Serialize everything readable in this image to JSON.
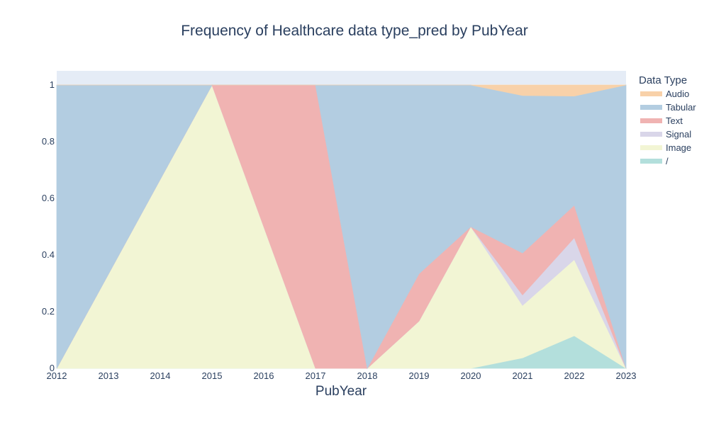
{
  "chart_data": {
    "type": "area",
    "stacked": true,
    "title": "Frequency of Healthcare data type_pred by PubYear",
    "xlabel": "PubYear",
    "ylabel": "",
    "x": [
      2012,
      2013,
      2014,
      2015,
      2016,
      2017,
      2018,
      2019,
      2020,
      2021,
      2022,
      2023
    ],
    "xlim": [
      2012,
      2023
    ],
    "ylim": [
      0,
      1.05
    ],
    "yticks": [
      0,
      0.2,
      0.4,
      0.6,
      0.8,
      1
    ],
    "ytick_labels": [
      "0",
      "0.2",
      "0.4",
      "0.6",
      "0.8",
      "1"
    ],
    "xtick_labels": [
      "2012",
      "2013",
      "2014",
      "2015",
      "2016",
      "2017",
      "2018",
      "2019",
      "2020",
      "2021",
      "2022",
      "2023"
    ],
    "grid": true,
    "legend": {
      "title": "Data Type",
      "position": "right"
    },
    "series": [
      {
        "name": "/",
        "color": "#b3dfdc",
        "values": [
          0,
          0,
          0,
          0,
          0,
          0,
          0,
          0,
          0,
          0.037,
          0.115,
          0
        ]
      },
      {
        "name": "Image",
        "color": "#f2f5d4",
        "values": [
          0,
          0.333,
          0.667,
          1,
          0.5,
          0,
          0,
          0.167,
          0.5,
          0.185,
          0.269,
          0
        ]
      },
      {
        "name": "Signal",
        "color": "#d9d6e9",
        "values": [
          0,
          0,
          0,
          0,
          0,
          0,
          0,
          0,
          0,
          0.037,
          0.077,
          0
        ]
      },
      {
        "name": "Text",
        "color": "#f0b3b2",
        "values": [
          0,
          0,
          0,
          0,
          0.5,
          1,
          0,
          0.167,
          0,
          0.148,
          0.115,
          0
        ]
      },
      {
        "name": "Tabular",
        "color": "#b3cde1",
        "values": [
          1,
          0.667,
          0.333,
          0,
          0,
          0,
          1,
          0.666,
          0.5,
          0.556,
          0.385,
          1
        ]
      },
      {
        "name": "Audio",
        "color": "#f8d1a9",
        "values": [
          0,
          0,
          0,
          0,
          0,
          0,
          0,
          0,
          0,
          0.037,
          0.039,
          0
        ]
      }
    ],
    "legend_order": [
      "Audio",
      "Tabular",
      "Text",
      "Signal",
      "Image",
      "/"
    ],
    "plot_background": "#e5ecf6",
    "text_color": "#2a3f5f"
  }
}
